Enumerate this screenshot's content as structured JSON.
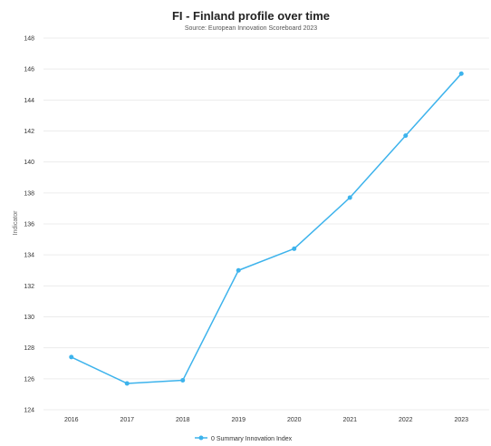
{
  "chart_data": {
    "type": "line",
    "title": "FI - Finland profile over time",
    "subtitle": "Source: European Innovation Scoreboard 2023",
    "xlabel": "",
    "ylabel": "Indicator",
    "categories": [
      "2016",
      "2017",
      "2018",
      "2019",
      "2020",
      "2021",
      "2022",
      "2023"
    ],
    "ylim": [
      124,
      148
    ],
    "yticks": [
      124,
      126,
      128,
      130,
      132,
      134,
      136,
      138,
      140,
      142,
      144,
      146,
      148
    ],
    "grid": true,
    "legend_position": "bottom",
    "series": [
      {
        "name": "0 Summary Innovation Index",
        "color": "#3db3ec",
        "values": [
          127.4,
          125.7,
          125.9,
          133.0,
          134.4,
          137.7,
          141.7,
          145.7
        ]
      }
    ]
  }
}
